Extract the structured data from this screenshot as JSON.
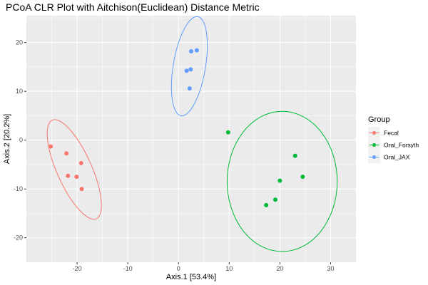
{
  "chart_data": {
    "type": "scatter",
    "title": "PCoA CLR Plot with Aitchison(Euclidean) Distance Metric",
    "xlabel": "Axis.1   [53.4%]",
    "ylabel": "Axis.2   [20.2%]",
    "xlim": [
      -30,
      35
    ],
    "ylim": [
      -25,
      25.5
    ],
    "x_ticks": [
      -20,
      -10,
      0,
      10,
      20,
      30
    ],
    "y_ticks": [
      -20,
      -10,
      0,
      10,
      20
    ],
    "x_tick_labels": [
      "-20",
      "-10",
      "0",
      "10",
      "20",
      "30"
    ],
    "y_tick_labels": [
      "-20",
      "-10",
      "0",
      "10",
      "20"
    ],
    "grid": true,
    "legend_position": "right",
    "legend": {
      "title": "Group",
      "entries": [
        "Fecal",
        "Oral_Forsyth",
        "Oral_JAX"
      ]
    },
    "series": [
      {
        "name": "Fecal",
        "color": "#F8766D",
        "points": [
          {
            "x": -25.2,
            "y": -1.3
          },
          {
            "x": -22.1,
            "y": -2.7
          },
          {
            "x": -19.2,
            "y": -4.7
          },
          {
            "x": -21.8,
            "y": -7.3
          },
          {
            "x": -20.1,
            "y": -7.5
          },
          {
            "x": -19.1,
            "y": -10.0
          }
        ],
        "ellipse": [
          {
            "x": -24.9,
            "y": 4.1
          },
          {
            "x": -16.2,
            "y": -16.1
          }
        ]
      },
      {
        "name": "Oral_Forsyth",
        "color": "#00BA38",
        "points": [
          {
            "x": 9.8,
            "y": 1.6
          },
          {
            "x": 23.0,
            "y": -3.2
          },
          {
            "x": 24.5,
            "y": -7.5
          },
          {
            "x": 20.0,
            "y": -8.3
          },
          {
            "x": 19.1,
            "y": -12.2
          },
          {
            "x": 17.3,
            "y": -13.3
          }
        ],
        "ellipse": [
          {
            "x": 9.6,
            "y": 5.9
          },
          {
            "x": 31.3,
            "y": -22.8
          }
        ]
      },
      {
        "name": "Oral_JAX",
        "color": "#619CFF",
        "points": [
          {
            "x": 2.5,
            "y": 18.2
          },
          {
            "x": 3.6,
            "y": 18.4
          },
          {
            "x": 1.6,
            "y": 14.2
          },
          {
            "x": 2.4,
            "y": 14.5
          },
          {
            "x": 2.2,
            "y": 10.6
          }
        ],
        "ellipse": [
          {
            "x": 3.8,
            "y": 25.3
          },
          {
            "x": 0.5,
            "y": 5.0
          }
        ]
      }
    ]
  }
}
